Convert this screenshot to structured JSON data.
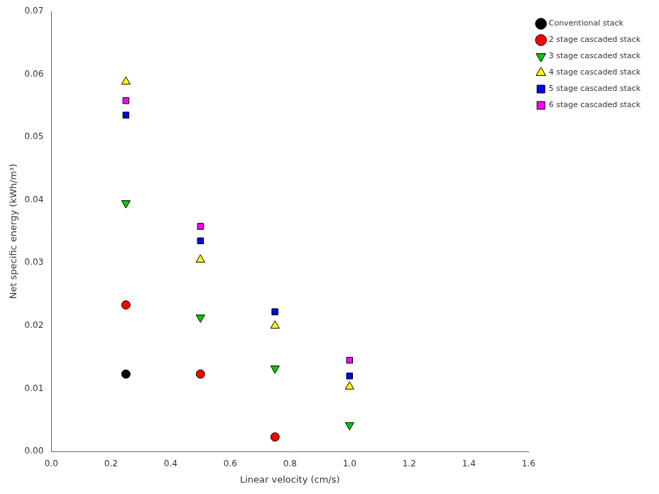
{
  "chart_data": {
    "type": "scatter",
    "xlabel": "Linear velocity (cm/s)",
    "ylabel": "Net specific energy (kWh/m³)",
    "xlim": [
      0.0,
      1.6
    ],
    "ylim": [
      0.0,
      0.07
    ],
    "xticks": [
      {
        "value": 0.0,
        "label": "0.0"
      },
      0.2,
      0.4,
      0.6,
      0.8,
      {
        "value": 1.0,
        "label": "1.0"
      },
      1.2,
      1.4,
      1.6
    ],
    "yticks": [
      {
        "value": 0.0,
        "label": "0.00"
      },
      0.01,
      0.02,
      0.03,
      0.04,
      0.05,
      0.06,
      0.07
    ],
    "grid": false,
    "legend": "upper right",
    "series": [
      {
        "name": "Conventional stack",
        "color": "#000000",
        "marker": "circle",
        "x": [
          0.25
        ],
        "values": [
          0.0123
        ]
      },
      {
        "name": "2 stage cascaded stack",
        "color": "#ff0000",
        "marker": "circle",
        "x": [
          0.25,
          0.5,
          0.75
        ],
        "values": [
          0.0233,
          0.0123,
          0.0023
        ]
      },
      {
        "name": "3 stage cascaded stack",
        "color": "#00cc00",
        "marker": "triangle-down",
        "x": [
          0.25,
          0.5,
          0.75,
          1.0
        ],
        "values": [
          0.0395,
          0.0213,
          0.0132,
          0.0042
        ]
      },
      {
        "name": "4 stage cascaded stack",
        "color": "#ffff00",
        "marker": "triangle-up",
        "x": [
          0.25,
          0.5,
          0.75,
          1.0
        ],
        "values": [
          0.0588,
          0.0305,
          0.02,
          0.0103
        ]
      },
      {
        "name": "5 stage cascaded stack",
        "color": "#0000ff",
        "marker": "square",
        "x": [
          0.25,
          0.5,
          0.75,
          1.0
        ],
        "values": [
          0.0535,
          0.0335,
          0.0222,
          0.012
        ]
      },
      {
        "name": "6 stage cascaded stack",
        "color": "#ff00ff",
        "marker": "square",
        "x": [
          0.25,
          0.5,
          0.75,
          1.0
        ],
        "values": [
          0.0558,
          0.0358,
          0.0222,
          0.0145
        ]
      }
    ]
  }
}
